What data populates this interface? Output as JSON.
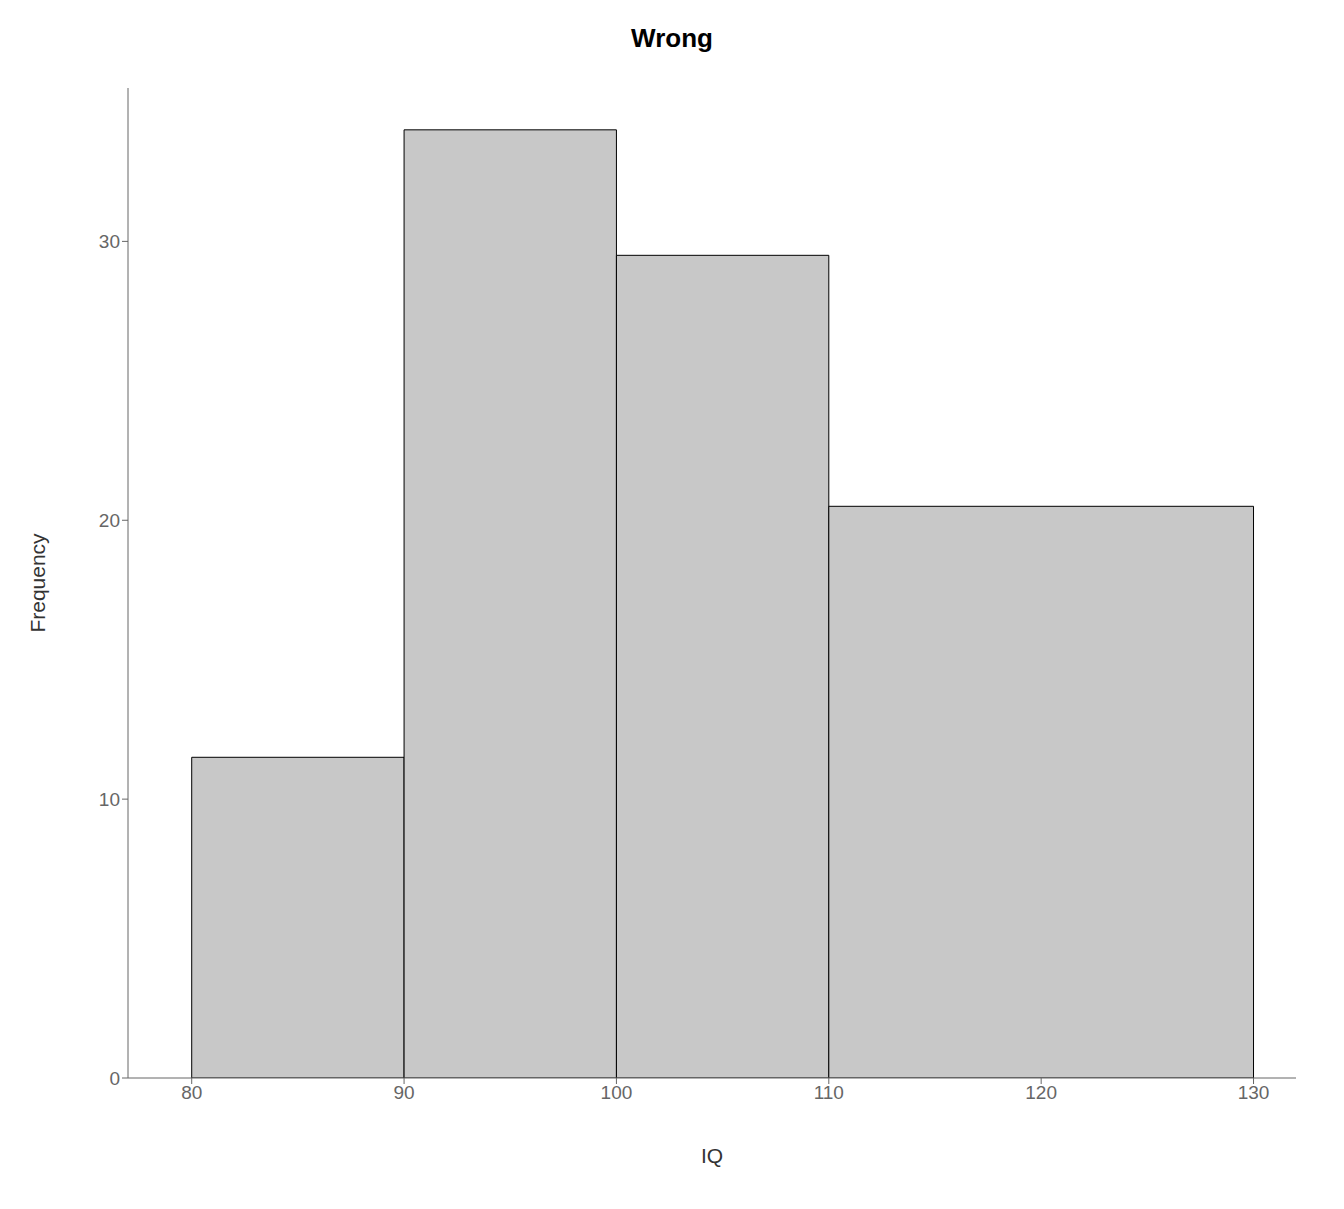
{
  "chart_data": {
    "type": "histogram",
    "title": "Wrong",
    "xlabel": "IQ",
    "ylabel": "Frequency",
    "bins": [
      80,
      90,
      100,
      110,
      130
    ],
    "values": [
      11.5,
      34.0,
      29.5,
      20.5
    ],
    "color": "#c8c8c8",
    "xlim": [
      77,
      132
    ],
    "ylim": [
      0,
      35.5
    ],
    "xticks": [
      80,
      90,
      100,
      110,
      120,
      130
    ],
    "yticks": [
      0,
      10,
      20,
      30
    ]
  }
}
